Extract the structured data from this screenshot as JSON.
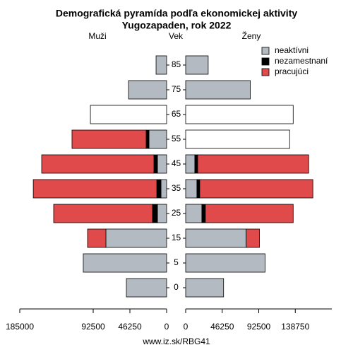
{
  "chart_data": {
    "type": "pyramid",
    "title": "Demografická pyramída podľa ekonomickej aktivity",
    "subtitle": "Yugozapaden, rok 2022",
    "left_label": "Muži",
    "center_label": "Vek",
    "right_label": "Ženy",
    "categories": [
      "0",
      "5",
      "15",
      "25",
      "35",
      "45",
      "55",
      "65",
      "75",
      "85"
    ],
    "series": [
      {
        "name": "neaktívni",
        "color": "#b3bac2",
        "men": [
          50700,
          105000,
          76500,
          11600,
          7100,
          11600,
          22200,
          96000,
          48000,
          13300
        ],
        "women": [
          48000,
          100500,
          76500,
          20500,
          14200,
          11600,
          131600,
          136100,
          81800,
          28500
        ],
        "men_colors": [
          "#b3bac2",
          "#b3bac2",
          "#b3bac2",
          "#b3bac2",
          "#b3bac2",
          "#b3bac2",
          "#b3bac2",
          "#ffffff",
          "#b3bac2",
          "#b3bac2"
        ],
        "women_colors": [
          "#b3bac2",
          "#b3bac2",
          "#b3bac2",
          "#b3bac2",
          "#b3bac2",
          "#b3bac2",
          "#ffffff",
          "#ffffff",
          "#b3bac2",
          "#b3bac2"
        ]
      },
      {
        "name": "nezamestnaní",
        "color": "#000000",
        "men": [
          0,
          0,
          0,
          6200,
          5300,
          4400,
          3600,
          0,
          0,
          0
        ],
        "women": [
          0,
          0,
          0,
          4400,
          3600,
          3600,
          0,
          0,
          0,
          0
        ]
      },
      {
        "name": "pracujúci",
        "color": "#e04a4a",
        "men": [
          0,
          0,
          23100,
          124500,
          155600,
          141400,
          93400,
          0,
          0,
          0
        ],
        "women": [
          0,
          0,
          16900,
          111200,
          143200,
          140500,
          0,
          0,
          0,
          0
        ]
      }
    ],
    "xlim_left": [
      185000,
      0
    ],
    "xticks_left": [
      185000,
      92500,
      46250,
      0
    ],
    "xlim_right": [
      0,
      185000
    ],
    "xticks_right": [
      0,
      46250,
      92500,
      138750
    ],
    "legend": "top-right",
    "footer": "www.iz.sk/RBG41"
  }
}
